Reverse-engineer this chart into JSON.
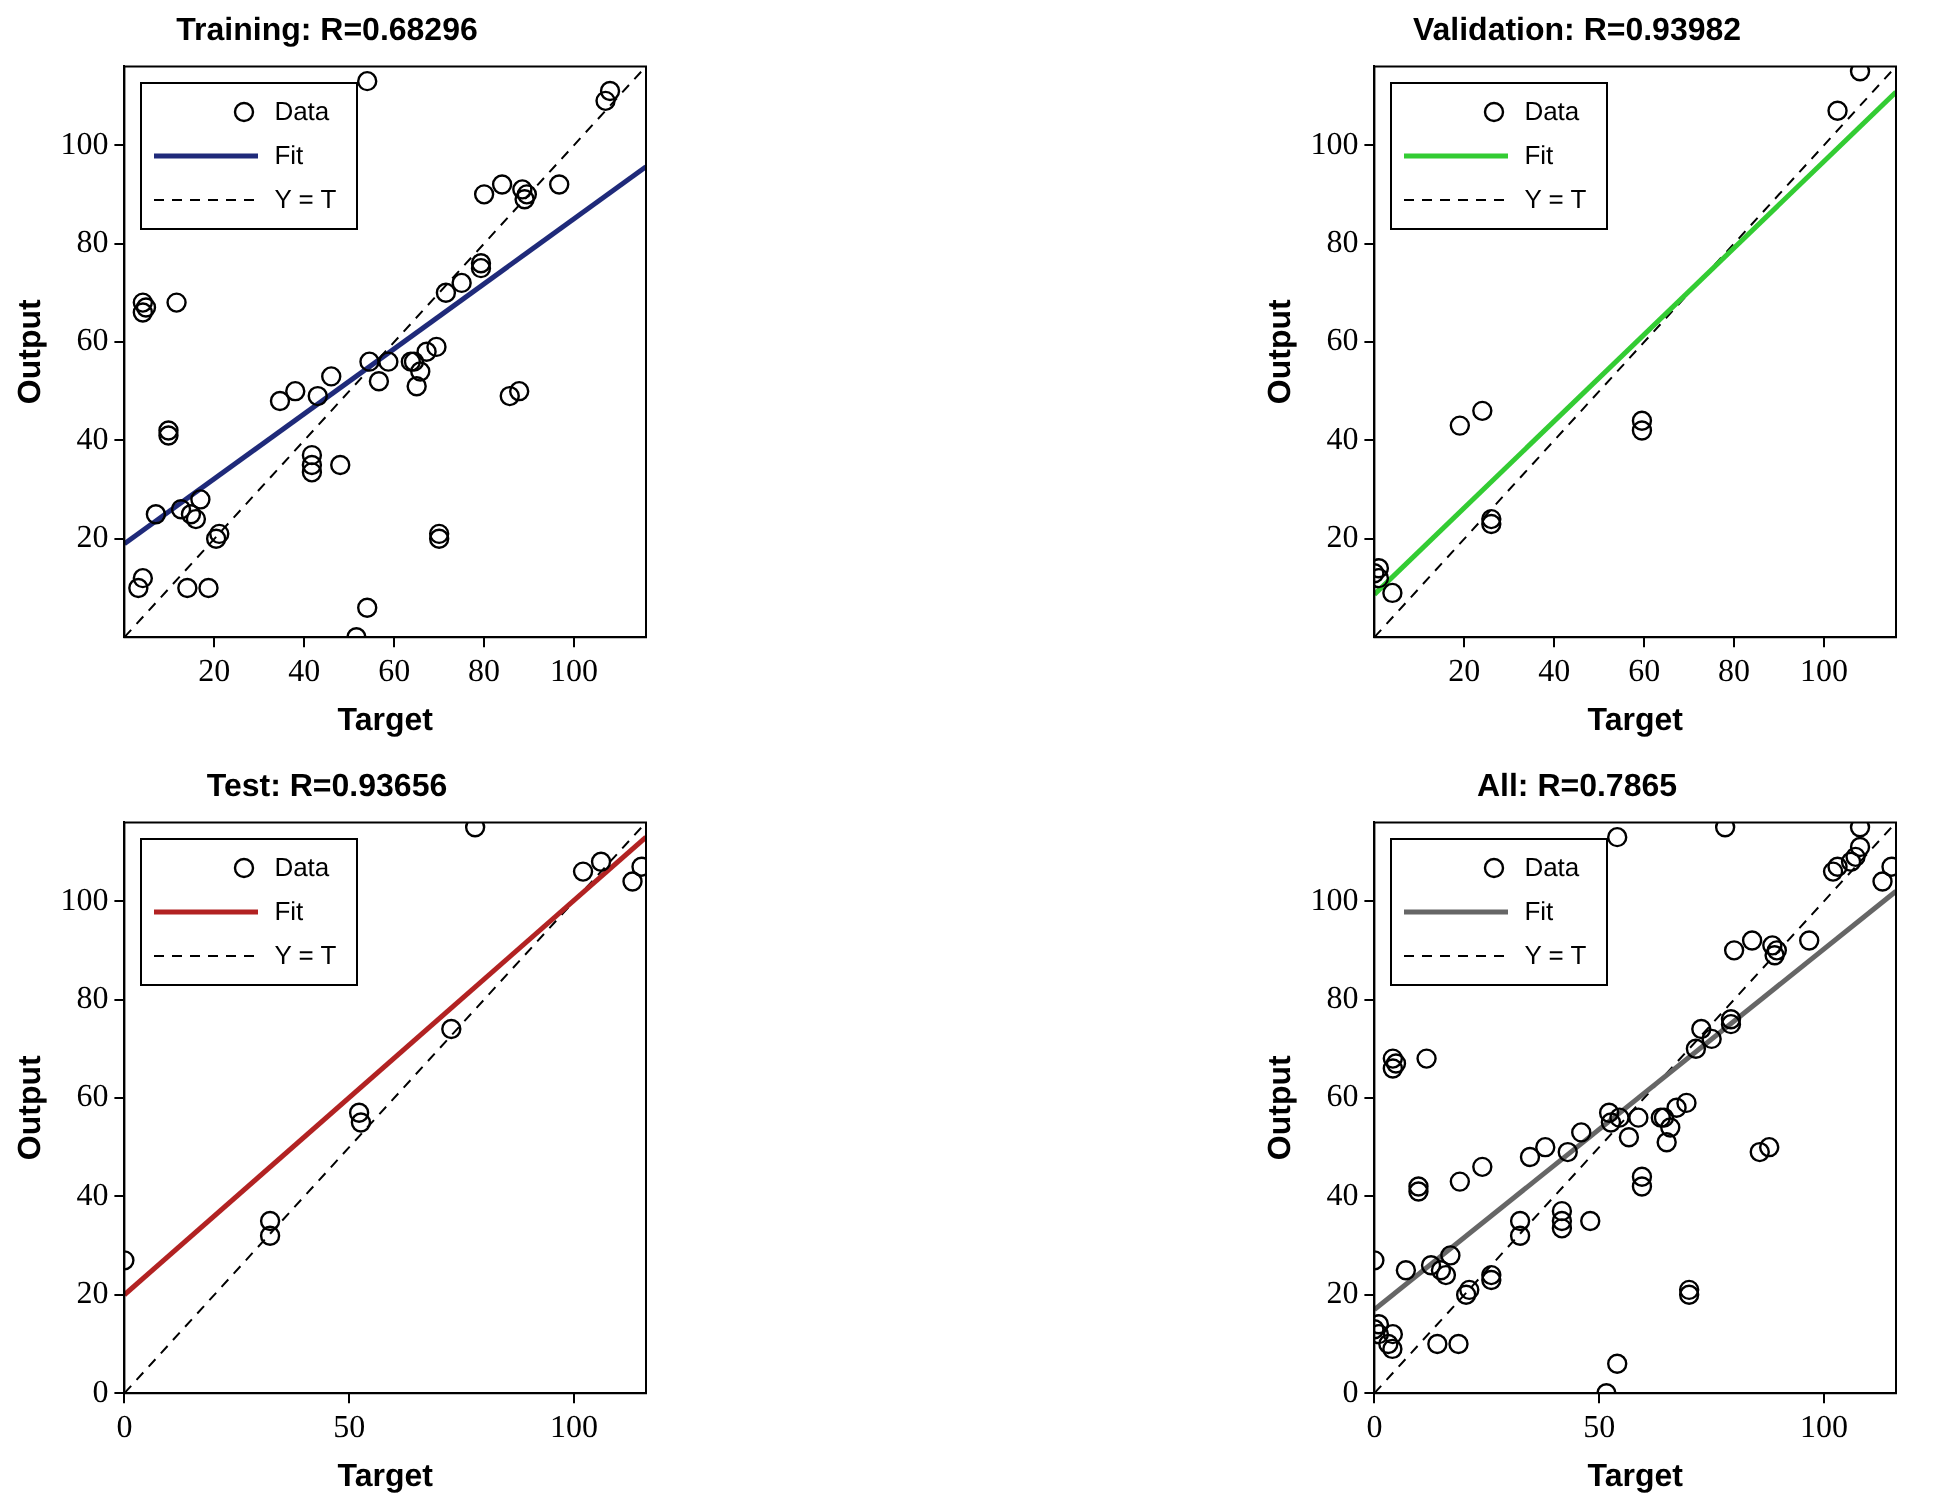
{
  "chart_data": [
    {
      "type": "scatter",
      "title": "Training: R=0.68296",
      "xlabel": "Target",
      "ylabel": "Output",
      "xlim": [
        0,
        116
      ],
      "ylim": [
        0,
        116
      ],
      "xticks": [
        20,
        40,
        60,
        80,
        100
      ],
      "yticks": [
        20,
        40,
        60,
        80,
        100
      ],
      "legend": "top left",
      "marker": "circle",
      "series": [
        {
          "name": "Data",
          "type": "scatter",
          "color": "#000000",
          "x": [
            54,
            107,
            108,
            80,
            84,
            88.5,
            89.5,
            89,
            96.7,
            79.3,
            79.3,
            75,
            71.5,
            69.4,
            67.2,
            64.4,
            65.8,
            65,
            63.7,
            54.5,
            56.6,
            58.7,
            46,
            43,
            38,
            34.6,
            41.7,
            41.7,
            41.7,
            48,
            85.7,
            87.8,
            70,
            70,
            54,
            51.6,
            4.1,
            4.1,
            4.8,
            11.6,
            9.8,
            9.8,
            7,
            12.6,
            14.8,
            15.9,
            16.9,
            20.4,
            21.1,
            4.1,
            3.1,
            14,
            18.7
          ],
          "values": [
            113,
            109,
            111,
            90,
            92,
            91,
            90,
            89,
            92,
            76,
            75,
            72,
            70,
            59,
            58,
            56,
            54,
            51,
            56,
            56,
            52,
            56,
            53,
            49,
            50,
            48,
            37,
            35,
            33.5,
            35,
            49,
            50,
            20,
            21,
            6,
            0,
            68,
            66,
            67,
            68,
            42,
            41,
            25,
            26,
            25,
            24,
            28,
            20,
            21,
            12,
            10,
            10,
            10
          ]
        },
        {
          "name": "Fit",
          "type": "line",
          "marker": "none",
          "color": "#1f2a7a",
          "x": [
            0,
            116
          ],
          "values": [
            19,
            95.6
          ]
        },
        {
          "name": "Y = T",
          "type": "line",
          "marker": "none",
          "line_style": "dashed",
          "color": "#000000",
          "x": [
            0,
            116
          ],
          "values": [
            0,
            116
          ]
        }
      ]
    },
    {
      "type": "scatter",
      "title": "Validation: R=0.93982",
      "xlabel": "Target",
      "ylabel": "Output",
      "xlim": [
        0,
        116
      ],
      "ylim": [
        0,
        116
      ],
      "xticks": [
        20,
        40,
        60,
        80,
        100
      ],
      "yticks": [
        20,
        40,
        60,
        80,
        100
      ],
      "legend": "top left",
      "marker": "circle",
      "series": [
        {
          "name": "Data",
          "type": "scatter",
          "color": "#000000",
          "x": [
            108,
            103,
            24,
            19,
            59.5,
            59.5,
            26,
            26,
            1,
            1,
            4,
            0
          ],
          "values": [
            115,
            107,
            46,
            43,
            44,
            42,
            24,
            23,
            14,
            12,
            9,
            13
          ]
        },
        {
          "name": "Fit",
          "type": "line",
          "marker": "none",
          "color": "#33cc33",
          "x": [
            0,
            116
          ],
          "values": [
            8.7,
            110.8
          ]
        },
        {
          "name": "Y = T",
          "type": "line",
          "marker": "none",
          "line_style": "dashed",
          "color": "#000000",
          "x": [
            0,
            116
          ],
          "values": [
            0,
            116
          ]
        }
      ]
    },
    {
      "type": "scatter",
      "title": "Test: R=0.93656",
      "xlabel": "Target",
      "ylabel": "Output",
      "xlim": [
        0,
        116
      ],
      "ylim": [
        0,
        116
      ],
      "xticks": [
        0,
        50,
        100
      ],
      "yticks": [
        0,
        20,
        40,
        60,
        80,
        100
      ],
      "legend": "top left",
      "marker": "circle",
      "series": [
        {
          "name": "Data",
          "type": "scatter",
          "color": "#000000",
          "x": [
            78,
            102,
            106,
            72.7,
            52.2,
            52.6,
            32.4,
            32.4,
            0,
            113,
            115
          ],
          "values": [
            115,
            106,
            108,
            74,
            57,
            55,
            35,
            32,
            27,
            104,
            107
          ]
        },
        {
          "name": "Fit",
          "type": "line",
          "marker": "none",
          "color": "#b22222",
          "x": [
            0,
            116
          ],
          "values": [
            20,
            113
          ]
        },
        {
          "name": "Y = T",
          "type": "line",
          "marker": "none",
          "line_style": "dashed",
          "color": "#000000",
          "x": [
            0,
            116
          ],
          "values": [
            0,
            116
          ]
        }
      ]
    },
    {
      "type": "scatter",
      "title": "All: R=0.7865",
      "xlabel": "Target",
      "ylabel": "Output",
      "xlim": [
        0,
        116
      ],
      "ylim": [
        0,
        116
      ],
      "xticks": [
        0,
        50,
        100
      ],
      "yticks": [
        0,
        20,
        40,
        60,
        80,
        100
      ],
      "legend": "top left",
      "marker": "circle",
      "series": [
        {
          "name": "Data",
          "type": "scatter",
          "color": "#000000",
          "x": [
            54,
            107,
            108,
            80,
            84,
            88.5,
            89.5,
            89,
            96.7,
            79.3,
            79.3,
            75,
            71.5,
            69.4,
            67.2,
            64.4,
            65.8,
            65,
            63.7,
            54.5,
            56.6,
            58.7,
            46,
            43,
            38,
            34.6,
            41.7,
            41.7,
            41.7,
            48,
            85.7,
            87.8,
            70,
            70,
            54,
            51.6,
            4.1,
            4.1,
            4.8,
            11.6,
            9.8,
            9.8,
            7,
            12.6,
            14.8,
            15.9,
            16.9,
            20.4,
            21.1,
            4.1,
            3.1,
            14,
            18.7,
            108,
            103,
            24,
            19,
            59.5,
            59.5,
            26,
            26,
            1,
            1,
            4,
            0,
            78,
            102,
            106,
            72.7,
            52.2,
            52.6,
            32.4,
            32.4,
            0,
            113,
            115
          ],
          "values": [
            113,
            109,
            111,
            90,
            92,
            91,
            90,
            89,
            92,
            76,
            75,
            72,
            70,
            59,
            58,
            56,
            54,
            51,
            56,
            56,
            52,
            56,
            53,
            49,
            50,
            48,
            37,
            35,
            33.5,
            35,
            49,
            50,
            20,
            21,
            6,
            0,
            68,
            66,
            67,
            68,
            42,
            41,
            25,
            26,
            25,
            24,
            28,
            20,
            21,
            12,
            10,
            10,
            10,
            115,
            107,
            46,
            43,
            44,
            42,
            24,
            23,
            14,
            12,
            9,
            13,
            115,
            106,
            108,
            74,
            57,
            55,
            35,
            32,
            27,
            104,
            107
          ]
        },
        {
          "name": "Fit",
          "type": "line",
          "marker": "none",
          "color": "#666666",
          "x": [
            0,
            116
          ],
          "values": [
            17,
            102
          ]
        },
        {
          "name": "Y = T",
          "type": "line",
          "marker": "none",
          "line_style": "dashed",
          "color": "#000000",
          "x": [
            0,
            116
          ],
          "values": [
            0,
            116
          ]
        }
      ]
    }
  ]
}
